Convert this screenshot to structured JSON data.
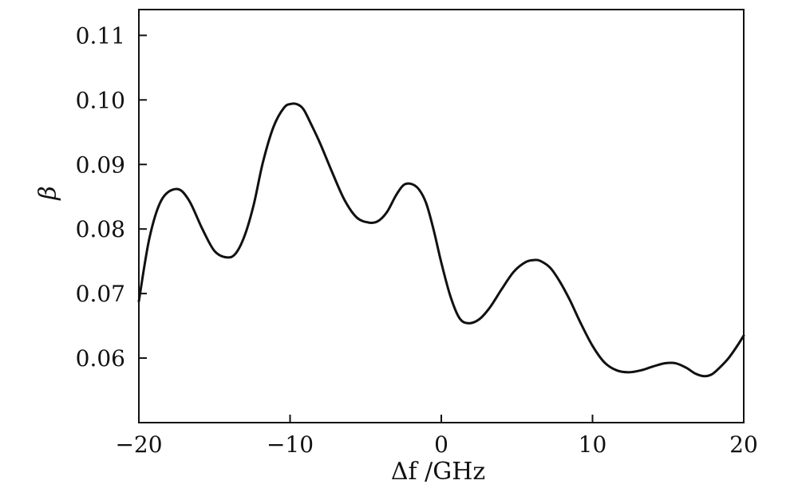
{
  "chart_data": {
    "type": "line",
    "title": "",
    "xlabel": "Δf /GHz",
    "ylabel": "β",
    "xlim": [
      -20,
      20
    ],
    "ylim": [
      0.05,
      0.114
    ],
    "xticks": [
      -20,
      -10,
      0,
      10,
      20
    ],
    "xtick_labels": [
      "−20",
      "−10",
      "0",
      "10",
      "20"
    ],
    "yticks": [
      0.06,
      0.07,
      0.08,
      0.09,
      0.1,
      0.11
    ],
    "ytick_labels": [
      "0.06",
      "0.07",
      "0.08",
      "0.09",
      "0.10",
      "0.11"
    ],
    "grid": false,
    "series": [
      {
        "name": "",
        "color": "#111111",
        "x": [
          -20,
          -19.3,
          -18.5,
          -17.5,
          -16.7,
          -15.8,
          -15.0,
          -14.2,
          -13.6,
          -13.0,
          -12.4,
          -11.8,
          -11.1,
          -10.4,
          -9.9,
          -9.5,
          -9.1,
          -8.6,
          -8.0,
          -7.2,
          -6.4,
          -5.6,
          -4.8,
          -4.2,
          -3.6,
          -3.0,
          -2.5,
          -2.0,
          -1.5,
          -1.0,
          -0.5,
          0.0,
          0.6,
          1.2,
          1.8,
          2.5,
          3.2,
          4.0,
          4.8,
          5.6,
          6.2,
          6.6,
          7.2,
          7.8,
          8.5,
          9.2,
          10.0,
          10.8,
          11.6,
          12.4,
          13.2,
          14.0,
          14.8,
          15.5,
          16.2,
          16.8,
          17.4,
          17.9,
          18.4,
          19.0,
          19.6,
          20.0
        ],
        "y": [
          0.0688,
          0.0786,
          0.0845,
          0.0862,
          0.0845,
          0.08,
          0.0766,
          0.0756,
          0.0762,
          0.079,
          0.0838,
          0.0903,
          0.0958,
          0.0988,
          0.0994,
          0.0993,
          0.0985,
          0.0962,
          0.0932,
          0.0887,
          0.0845,
          0.0818,
          0.081,
          0.0812,
          0.0826,
          0.0852,
          0.0868,
          0.087,
          0.0862,
          0.084,
          0.0798,
          0.0748,
          0.0696,
          0.0662,
          0.0654,
          0.066,
          0.0678,
          0.0707,
          0.0734,
          0.0749,
          0.0752,
          0.075,
          0.074,
          0.072,
          0.069,
          0.0655,
          0.0619,
          0.0593,
          0.0581,
          0.0578,
          0.0581,
          0.0587,
          0.0592,
          0.0592,
          0.0585,
          0.0576,
          0.0572,
          0.0575,
          0.0585,
          0.06,
          0.062,
          0.0635
        ]
      }
    ]
  }
}
